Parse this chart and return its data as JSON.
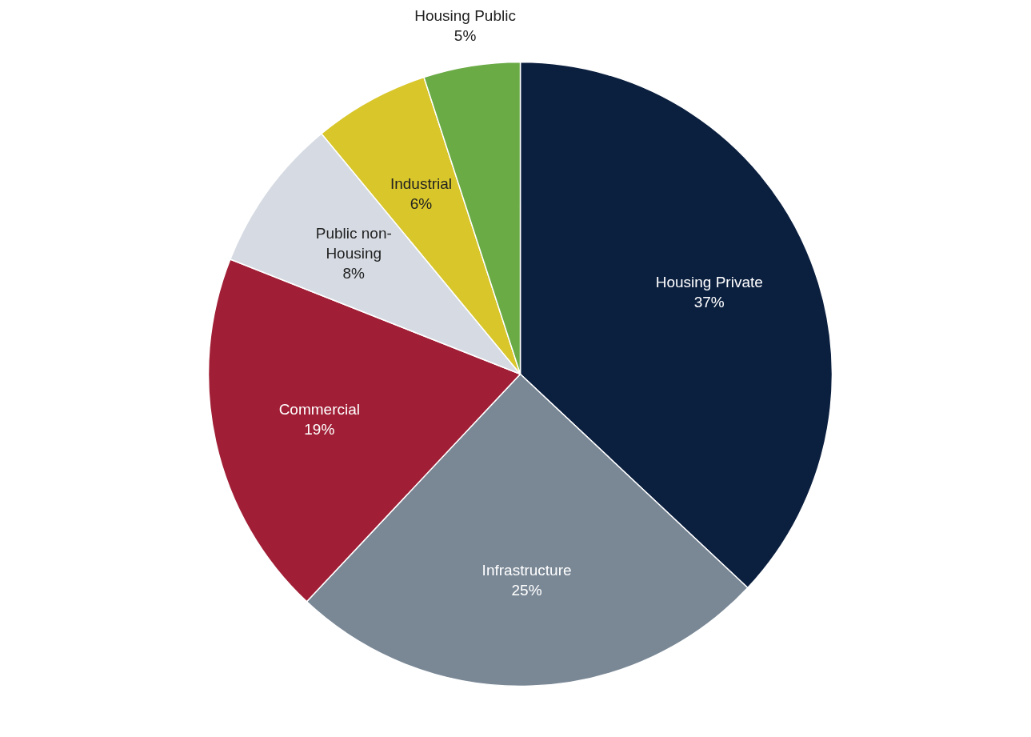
{
  "chart_data": {
    "type": "pie",
    "categories": [
      "Housing Private",
      "Infrastructure",
      "Commercial",
      "Public non-\nHousing",
      "Industrial",
      "Housing Public"
    ],
    "values": [
      37,
      25,
      19,
      8,
      6,
      5
    ],
    "value_labels": [
      "37%",
      "25%",
      "19%",
      "8%",
      "6%",
      "5%"
    ],
    "colors": [
      "#0b1f3f",
      "#7a8896",
      "#a11f36",
      "#d6dbe3",
      "#d8c62a",
      "#6aab46"
    ]
  }
}
